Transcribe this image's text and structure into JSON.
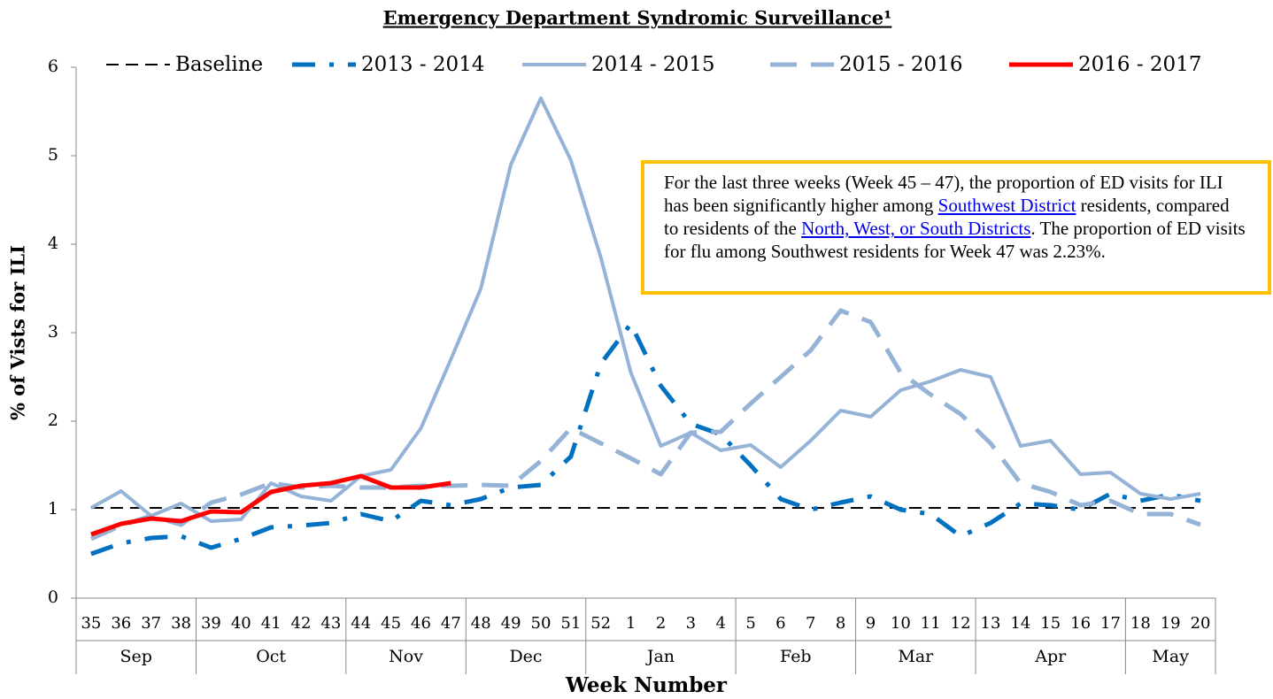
{
  "chart_data": {
    "type": "line",
    "title": "Emergency Department Syndromic Surveillance¹",
    "y_label": "% of Vists for ILI",
    "x_label": "Week Number",
    "ylim": [
      0,
      6
    ],
    "yticks": [
      0,
      1,
      2,
      3,
      4,
      5,
      6
    ],
    "groups": [
      {
        "label": "Sep",
        "categories": [
          "35",
          "36",
          "37",
          "38"
        ]
      },
      {
        "label": "Oct",
        "categories": [
          "39",
          "40",
          "41",
          "42",
          "43"
        ]
      },
      {
        "label": "Nov",
        "categories": [
          "44",
          "45",
          "46",
          "47"
        ]
      },
      {
        "label": "Dec",
        "categories": [
          "48",
          "49",
          "50",
          "51"
        ]
      },
      {
        "label": "Jan",
        "categories": [
          "52",
          "1",
          "2",
          "3",
          "4"
        ]
      },
      {
        "label": "Feb",
        "categories": [
          "5",
          "6",
          "7",
          "8"
        ]
      },
      {
        "label": "Mar",
        "categories": [
          "9",
          "10",
          "11",
          "12"
        ]
      },
      {
        "label": "Apr",
        "categories": [
          "13",
          "14",
          "15",
          "16",
          "17"
        ]
      },
      {
        "label": "May",
        "categories": [
          "18",
          "19",
          "20"
        ]
      }
    ],
    "series": [
      {
        "name": "Baseline",
        "color": "#000000",
        "style": "dash",
        "width": 2,
        "values": [
          1.02,
          1.02,
          1.02,
          1.02,
          1.02,
          1.02,
          1.02,
          1.02,
          1.02,
          1.02,
          1.02,
          1.02,
          1.02,
          1.02,
          1.02,
          1.02,
          1.02,
          1.02,
          1.02,
          1.02,
          1.02,
          1.02,
          1.02,
          1.02,
          1.02,
          1.02,
          1.02,
          1.02,
          1.02,
          1.02,
          1.02,
          1.02,
          1.02,
          1.02,
          1.02,
          1.02,
          1.02,
          1.02
        ]
      },
      {
        "name": "2013 - 2014",
        "color": "#0070c0",
        "style": "dashdot",
        "width": 5,
        "values": [
          0.5,
          0.62,
          0.68,
          0.7,
          0.57,
          0.67,
          0.8,
          0.82,
          0.85,
          0.95,
          0.87,
          1.1,
          1.05,
          1.12,
          1.25,
          1.28,
          1.6,
          2.65,
          3.1,
          2.4,
          1.97,
          1.85,
          1.5,
          1.12,
          1.0,
          1.08,
          1.15,
          1.0,
          0.95,
          0.7,
          0.85,
          1.07,
          1.05,
          1.0,
          1.18,
          1.1,
          1.17,
          1.1
        ]
      },
      {
        "name": "2014 - 2015",
        "color": "#95b3d7",
        "style": "solid",
        "width": 4,
        "values": [
          1.02,
          1.21,
          0.93,
          1.07,
          0.87,
          0.89,
          1.3,
          1.15,
          1.1,
          1.38,
          1.45,
          1.92,
          2.7,
          3.5,
          4.9,
          5.65,
          4.95,
          3.85,
          2.55,
          1.72,
          1.87,
          1.67,
          1.73,
          1.48,
          1.78,
          2.12,
          2.05,
          2.35,
          2.45,
          2.58,
          2.5,
          1.72,
          1.78,
          1.4,
          1.42,
          1.18,
          1.12,
          1.18
        ]
      },
      {
        "name": "2015 - 2016",
        "color": "#95b3d7",
        "style": "longdash",
        "width": 5,
        "values": [
          0.67,
          0.82,
          0.93,
          0.83,
          1.08,
          1.17,
          1.3,
          1.25,
          1.27,
          1.25,
          1.25,
          1.27,
          1.27,
          1.28,
          1.27,
          1.55,
          1.92,
          1.75,
          1.58,
          1.4,
          1.87,
          1.88,
          2.2,
          2.5,
          2.8,
          3.25,
          3.12,
          2.55,
          2.3,
          2.08,
          1.75,
          1.3,
          1.2,
          1.05,
          1.1,
          0.95,
          0.95,
          0.83
        ]
      },
      {
        "name": "2016 - 2017",
        "color": "#ff0000",
        "style": "solid",
        "width": 5,
        "values": [
          0.72,
          0.84,
          0.9,
          0.87,
          0.98,
          0.97,
          1.2,
          1.27,
          1.3,
          1.38,
          1.25,
          1.25,
          1.3,
          null,
          null,
          null,
          null,
          null,
          null,
          null,
          null,
          null,
          null,
          null,
          null,
          null,
          null,
          null,
          null,
          null,
          null,
          null,
          null,
          null,
          null,
          null,
          null,
          null
        ]
      }
    ],
    "annotation": [
      {
        "text": "For the last three weeks (Week 45 – 47), the proportion of ED visits for ILI has been significantly higher among "
      },
      {
        "text": "Southwest District",
        "link": true
      },
      {
        "text": " residents, compared to residents of the "
      },
      {
        "text": "North, West, or South Districts",
        "link": true
      },
      {
        "text": ". The proportion of ED visits for flu among Southwest residents for Week 47 was 2.23%."
      }
    ]
  }
}
